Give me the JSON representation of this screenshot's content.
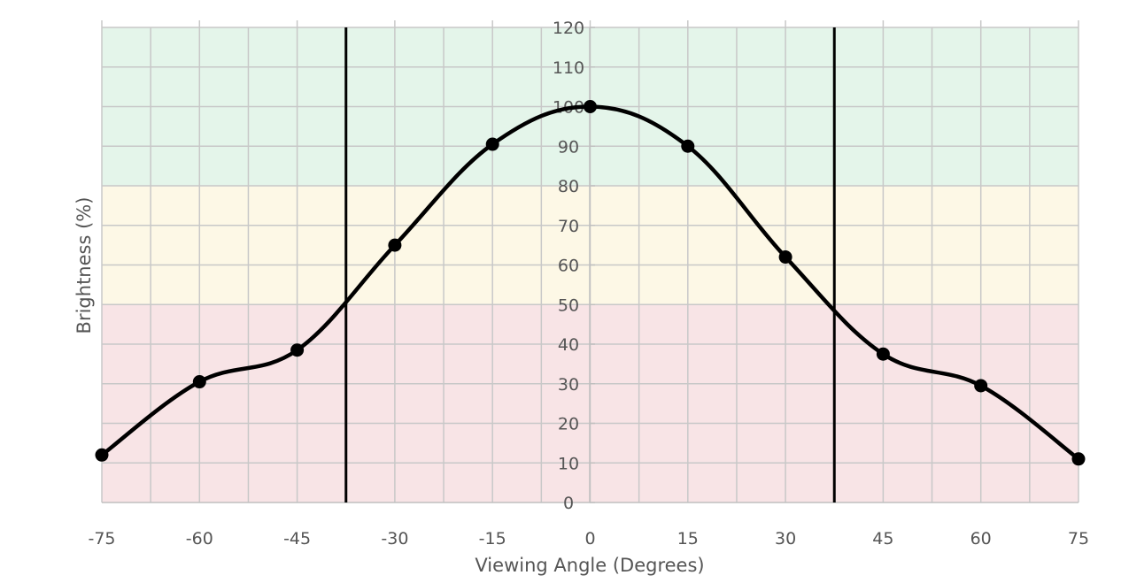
{
  "chart_data": {
    "type": "line",
    "xlabel": "Viewing Angle (Degrees)",
    "ylabel": "Brightness (%)",
    "xlim": [
      -75,
      75
    ],
    "ylim": [
      0,
      120
    ],
    "x_ticks": [
      -75,
      -60,
      -45,
      -30,
      -15,
      0,
      15,
      30,
      45,
      60,
      75
    ],
    "x_tick_labels": [
      "-75",
      "-60",
      "-45",
      "-30",
      "-15",
      "0",
      "15",
      "30",
      "45",
      "60",
      "75"
    ],
    "y_ticks": [
      0,
      10,
      20,
      30,
      40,
      50,
      60,
      70,
      80,
      90,
      100,
      110,
      120
    ],
    "y_tick_labels": [
      "0",
      "10",
      "20",
      "30",
      "40",
      "50",
      "60",
      "70",
      "80",
      "90",
      "100",
      "110",
      "120"
    ],
    "grid": true,
    "bands": [
      {
        "from": 80,
        "to": 120,
        "color": "#e4f5ea"
      },
      {
        "from": 50,
        "to": 80,
        "color": "#fdf8e6"
      },
      {
        "from": 0,
        "to": 50,
        "color": "#f8e4e6"
      }
    ],
    "reference_lines_x": [
      -37.5,
      37.5
    ],
    "series": [
      {
        "x": [
          -75,
          -60,
          -45,
          -30,
          -15,
          0,
          15,
          30,
          45,
          60,
          75
        ],
        "y": [
          12,
          30.5,
          38.5,
          65,
          90.5,
          100,
          90,
          62,
          37.5,
          29.5,
          11
        ]
      }
    ],
    "colors": {
      "line": "#000000",
      "grid": "#c8c8c8",
      "text": "#555555"
    }
  }
}
